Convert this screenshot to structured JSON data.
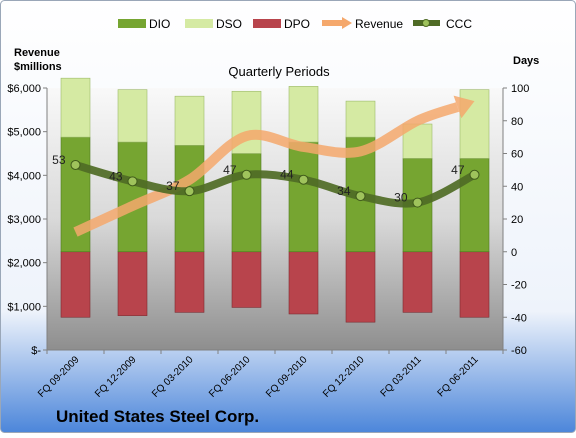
{
  "chart_data": {
    "type": "bar",
    "title": "Quarterly Periods",
    "footer_title": "United States Steel Corp.",
    "left_axis_label_line1": "Revenue",
    "left_axis_label_line2": "$millions",
    "right_axis_label": "Days",
    "categories": [
      "FQ 09-2009",
      "FQ 12-2009",
      "FQ 03-2010",
      "FQ 06-2010",
      "FQ 09-2010",
      "FQ 12-2010",
      "FQ 03-2011",
      "FQ 06-2011"
    ],
    "left_axis": {
      "min": 0,
      "max": 6000,
      "step": 1000,
      "tick_labels": [
        "$-",
        "$1,000",
        "$2,000",
        "$3,000",
        "$4,000",
        "$5,000",
        "$6,000"
      ]
    },
    "right_axis": {
      "min": -60,
      "max": 100,
      "step": 20,
      "tick_labels": [
        "-60",
        "-40",
        "-20",
        "0",
        "20",
        "40",
        "60",
        "80",
        "100"
      ]
    },
    "series": [
      {
        "name": "DIO",
        "axis": "right",
        "kind": "stacked_bar",
        "color": "#76a531",
        "values": [
          70,
          67,
          65,
          60,
          67,
          70,
          57,
          57
        ]
      },
      {
        "name": "DSO",
        "axis": "right",
        "kind": "stacked_bar",
        "color": "#d5eaa3",
        "values": [
          36,
          32,
          30,
          38,
          34,
          22,
          21,
          42
        ]
      },
      {
        "name": "DPO",
        "axis": "right",
        "kind": "negative_bar",
        "color": "#b8444c",
        "values": [
          -40,
          -39,
          -37,
          -34,
          -38,
          -43,
          -37,
          -40
        ]
      },
      {
        "name": "Revenue",
        "axis": "left",
        "kind": "arrow_line",
        "color": "#f5a86c",
        "values": [
          2700,
          3300,
          3900,
          4900,
          4650,
          4550,
          5250,
          5700
        ]
      },
      {
        "name": "CCC",
        "axis": "right",
        "kind": "line_markers",
        "color": "#4f6b25",
        "values": [
          53,
          43,
          37,
          47,
          44,
          34,
          30,
          47
        ]
      }
    ],
    "data_labels": [
      "53",
      "43",
      "37",
      "47",
      "44",
      "34",
      "30",
      "47"
    ],
    "legend": {
      "position": "top",
      "entries": [
        "DIO",
        "DSO",
        "DPO",
        "Revenue",
        "CCC"
      ]
    },
    "grid": false
  }
}
